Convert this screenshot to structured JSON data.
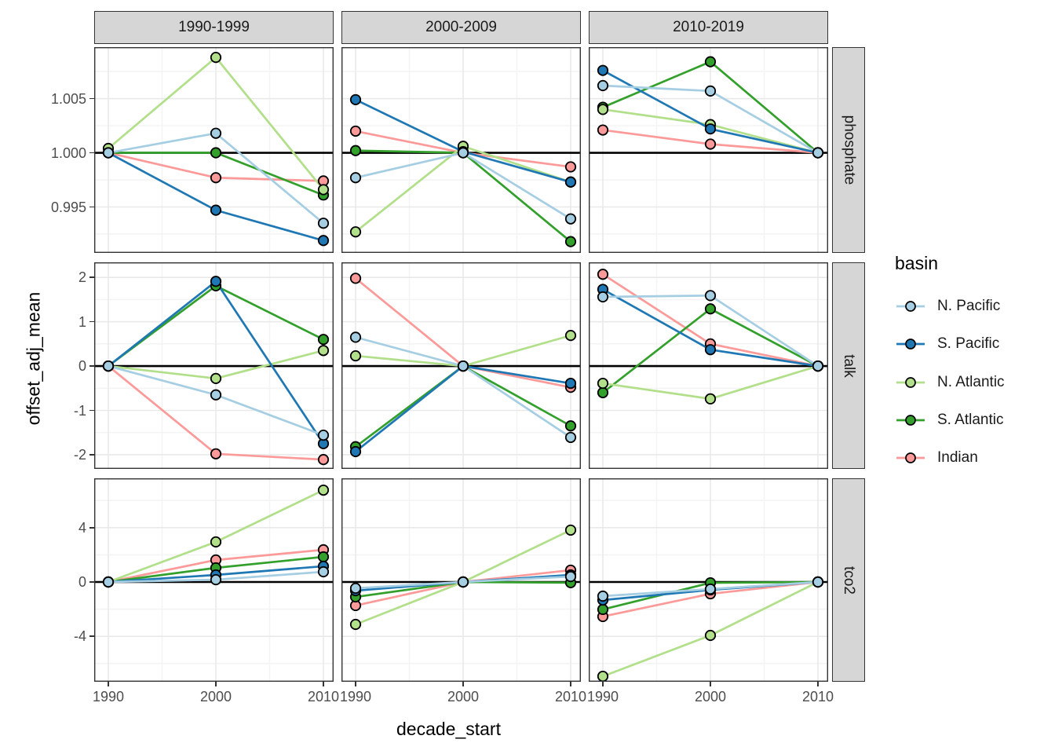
{
  "chart_data": {
    "type": "line",
    "title": "",
    "xlabel": "decade_start",
    "ylabel": "offset_adj_mean",
    "x": [
      1990,
      2000,
      2010
    ],
    "x_tick_labels": [
      "1990",
      "2000",
      "2010"
    ],
    "facet_columns": [
      "1990-1999",
      "2000-2009",
      "2010-2019"
    ],
    "facet_rows": [
      "phosphate",
      "talk",
      "tco2"
    ],
    "grid": "major and minor, light grey on white, black panel border",
    "legend": {
      "title": "basin",
      "position": "right"
    },
    "series": [
      {
        "name": "N. Pacific",
        "color": "#a6cee3"
      },
      {
        "name": "S. Pacific",
        "color": "#1f78b4"
      },
      {
        "name": "N. Atlantic",
        "color": "#b2df8a"
      },
      {
        "name": "S. Atlantic",
        "color": "#33a02c"
      },
      {
        "name": "Indian",
        "color": "#fb9a99"
      }
    ],
    "rows": [
      {
        "label": "phosphate",
        "hline": 1.0,
        "ylim": [
          0.99076,
          1.00975
        ],
        "yticks": [
          {
            "v": 1.005,
            "label": "1.005"
          },
          {
            "v": 1.0,
            "label": "1.000"
          },
          {
            "v": 0.995,
            "label": "0.995"
          }
        ],
        "yminor": [
          1.0075,
          1.0025,
          0.9975,
          0.9925
        ],
        "values": [
          {
            "N. Pacific": [
              1.0,
              1.0018,
              0.9935
            ],
            "S. Pacific": [
              1.0,
              0.9947,
              0.9919
            ],
            "N. Atlantic": [
              1.0004,
              1.0088,
              0.9966
            ],
            "S. Atlantic": [
              1.0,
              1.0,
              0.9961
            ],
            "Indian": [
              1.0,
              0.9977,
              0.9974
            ]
          },
          {
            "N. Pacific": [
              0.9977,
              1.0,
              0.9939
            ],
            "S. Pacific": [
              1.0049,
              1.0001,
              0.9973
            ],
            "N. Atlantic": [
              0.9927,
              1.0006,
              0.9973
            ],
            "S. Atlantic": [
              1.0002,
              1.0,
              0.9918
            ],
            "Indian": [
              1.002,
              1.0,
              0.9987
            ]
          },
          {
            "N. Pacific": [
              1.0062,
              1.0057,
              1.0
            ],
            "S. Pacific": [
              1.0076,
              1.0022,
              1.0
            ],
            "N. Atlantic": [
              1.004,
              1.0026,
              1.0
            ],
            "S. Atlantic": [
              1.0042,
              1.0084,
              1.0
            ],
            "Indian": [
              1.0021,
              1.0008,
              1.0
            ]
          }
        ]
      },
      {
        "label": "talk",
        "hline": 0,
        "ylim": [
          -2.32,
          2.34
        ],
        "yticks": [
          {
            "v": 2,
            "label": "2"
          },
          {
            "v": 1,
            "label": "1"
          },
          {
            "v": 0,
            "label": "0"
          },
          {
            "v": -1,
            "label": "-1"
          },
          {
            "v": -2,
            "label": "-2"
          }
        ],
        "yminor": [
          1.5,
          0.5,
          -0.5,
          -1.5
        ],
        "values": [
          {
            "N. Pacific": [
              0,
              -0.65,
              -1.56
            ],
            "S. Pacific": [
              0,
              1.91,
              -1.75
            ],
            "N. Atlantic": [
              0,
              -0.28,
              0.35
            ],
            "S. Atlantic": [
              0,
              1.81,
              0.6
            ],
            "Indian": [
              0,
              -1.98,
              -2.11
            ]
          },
          {
            "N. Pacific": [
              0.65,
              0,
              -1.61
            ],
            "S. Pacific": [
              -1.93,
              0,
              -0.39
            ],
            "N. Atlantic": [
              0.23,
              0,
              0.69
            ],
            "S. Atlantic": [
              -1.82,
              0,
              -1.35
            ],
            "Indian": [
              1.98,
              0,
              -0.48
            ]
          },
          {
            "N. Pacific": [
              1.56,
              1.59,
              0
            ],
            "S. Pacific": [
              1.73,
              0.37,
              0
            ],
            "N. Atlantic": [
              -0.39,
              -0.74,
              0
            ],
            "S. Atlantic": [
              -0.6,
              1.29,
              0
            ],
            "Indian": [
              2.07,
              0.5,
              0
            ]
          }
        ]
      },
      {
        "label": "tco2",
        "hline": 0,
        "ylim": [
          -7.34,
          7.63
        ],
        "yticks": [
          {
            "v": 4,
            "label": "4"
          },
          {
            "v": 0,
            "label": "0"
          },
          {
            "v": -4,
            "label": "-4"
          }
        ],
        "yminor": [
          6,
          2,
          -2,
          -6
        ],
        "values": [
          {
            "N. Pacific": [
              0,
              0.17,
              0.75
            ],
            "S. Pacific": [
              0,
              0.52,
              1.16
            ],
            "N. Atlantic": [
              0,
              2.95,
              6.76
            ],
            "S. Atlantic": [
              0,
              1.04,
              1.85
            ],
            "Indian": [
              0,
              1.62,
              2.37
            ]
          },
          {
            "N. Pacific": [
              -0.46,
              0,
              0.4
            ],
            "S. Pacific": [
              -0.64,
              0,
              0.52
            ],
            "N. Atlantic": [
              -3.12,
              0,
              3.82
            ],
            "S. Atlantic": [
              -1.1,
              0,
              -0.05
            ],
            "Indian": [
              -1.73,
              0,
              0.87
            ]
          },
          {
            "N. Pacific": [
              -1.04,
              -0.52,
              0
            ],
            "S. Pacific": [
              -1.33,
              -0.58,
              0
            ],
            "N. Atlantic": [
              -6.94,
              -3.93,
              0
            ],
            "S. Atlantic": [
              -2.02,
              -0.06,
              0
            ],
            "Indian": [
              -2.54,
              -0.87,
              0
            ]
          }
        ]
      }
    ],
    "style_colors": {
      "grid_major": "#e9e9e9",
      "grid_minor": "#f4f4f4",
      "strip_bg": "#d6d6d6",
      "panel_border": "#333333",
      "hline": "#000000",
      "point_outline": "#000000",
      "tick_label": "#4d4d4d"
    }
  }
}
